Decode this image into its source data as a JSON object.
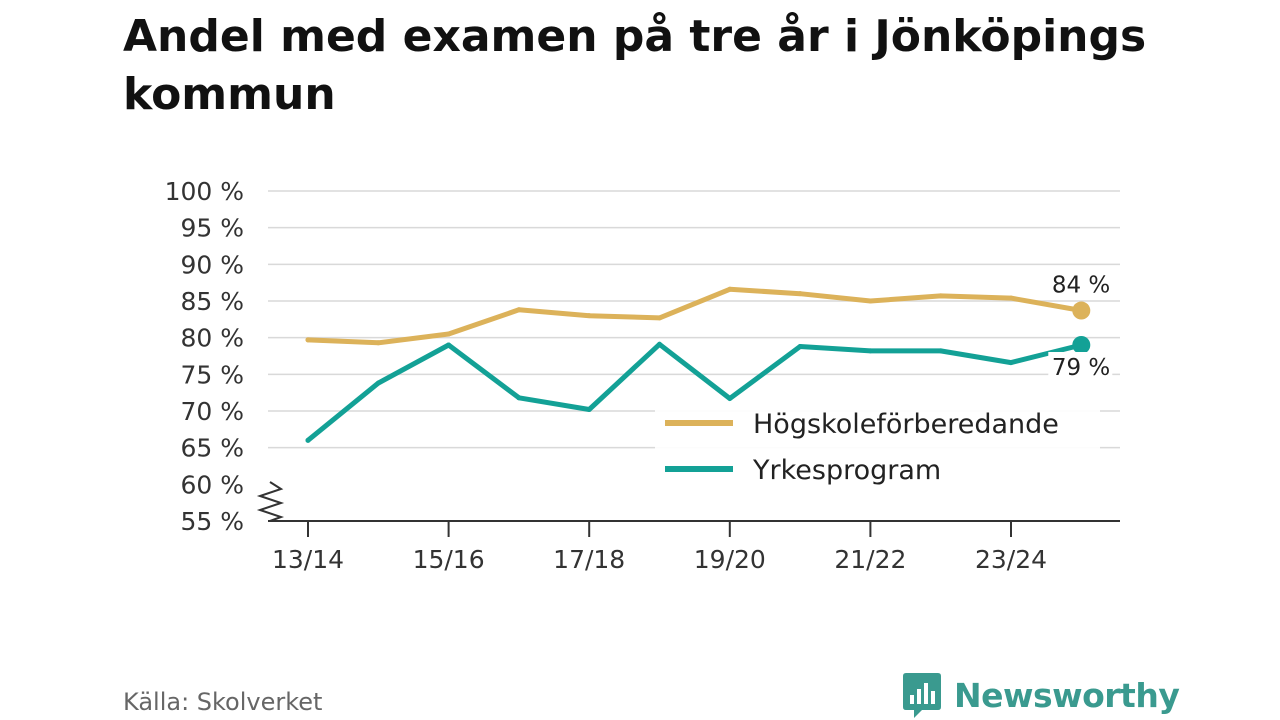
{
  "title": "Andel med examen på tre år i Jönköpings kommun",
  "source": "Källa: Skolverket",
  "brand": "Newsworthy",
  "colors": {
    "hogskole": "#dcb25a",
    "yrkes": "#13a196",
    "grid": "#d9d9d9",
    "axis": "#333333",
    "brand": "#3a9a8f"
  },
  "chart_data": {
    "type": "line",
    "x": [
      "13/14",
      "14/15",
      "15/16",
      "16/17",
      "17/18",
      "18/19",
      "19/20",
      "20/21",
      "21/22",
      "22/23",
      "23/24",
      "24/25"
    ],
    "xticks": [
      "13/14",
      "15/16",
      "17/18",
      "19/20",
      "21/22",
      "23/24"
    ],
    "yticks": [
      "55 %",
      "60 %",
      "65 %",
      "70 %",
      "75 %",
      "80 %",
      "85 %",
      "90 %",
      "95 %",
      "100 %"
    ],
    "ylim": [
      55,
      100
    ],
    "axis_break": true,
    "grid": true,
    "legend_position": "bottom-right",
    "series": [
      {
        "name": "Högskoleförberedande",
        "color": "#dcb25a",
        "values": [
          79.7,
          79.3,
          80.5,
          83.8,
          83.0,
          82.7,
          86.6,
          86.0,
          85.0,
          85.7,
          85.4,
          83.7
        ],
        "end_label": "84 %"
      },
      {
        "name": "Yrkesprogram",
        "color": "#13a196",
        "values": [
          66.0,
          73.8,
          79.0,
          71.8,
          70.2,
          79.1,
          71.7,
          78.8,
          78.2,
          78.2,
          76.6,
          79.0
        ],
        "end_label": "79 %"
      }
    ]
  }
}
